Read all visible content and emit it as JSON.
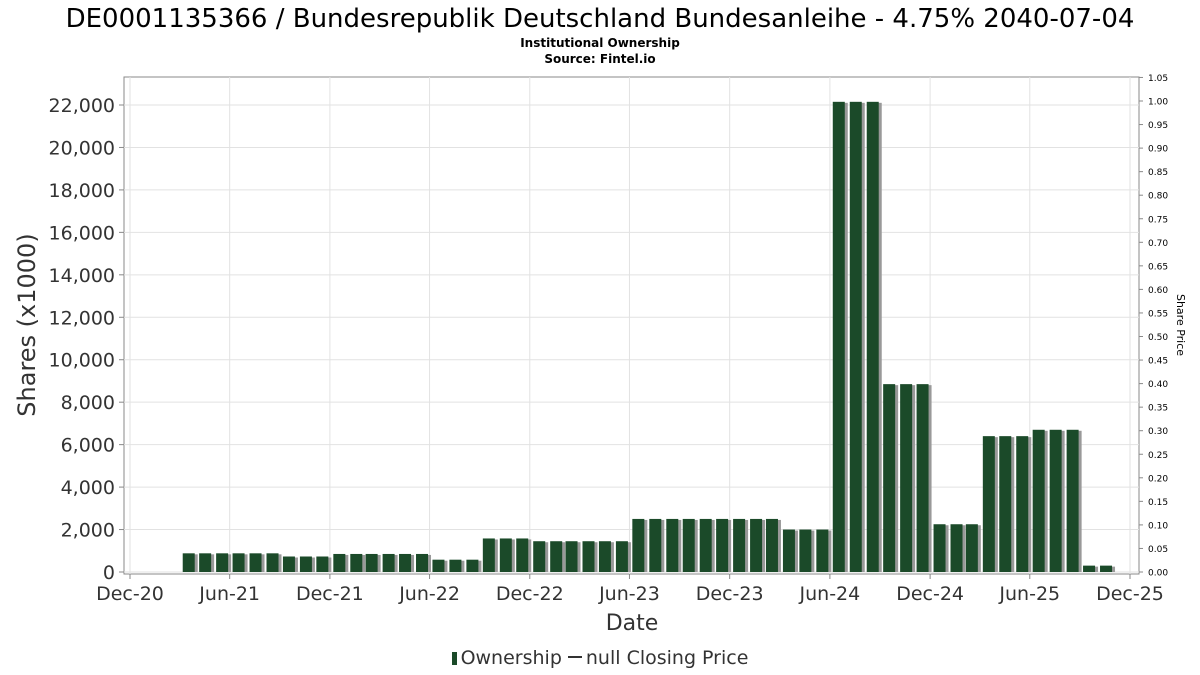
{
  "title": "DE0001135366 / Bundesrepublik Deutschland Bundesanleihe - 4.75% 2040-07-04",
  "subtitle": "Institutional Ownership",
  "source": "Source: Fintel.io",
  "colors": {
    "bar": "#1b4a29",
    "bar_shadow": "#999999",
    "grid": "#e2e2e2"
  },
  "legend": {
    "ownership": "Ownership",
    "closing_price": "null Closing Price"
  },
  "chart_data": {
    "type": "bar",
    "title": "DE0001135366 / Bundesrepublik Deutschland Bundesanleihe - 4.75% 2040-07-04",
    "xlabel": "Date",
    "ylabel": "Shares (x1000)",
    "y2label": "Share Price",
    "x_ticks": [
      "Dec-20",
      "Jun-21",
      "Dec-21",
      "Jun-22",
      "Dec-22",
      "Jun-23",
      "Dec-23",
      "Jun-24",
      "Dec-24",
      "Jun-25",
      "Dec-25"
    ],
    "x_range": [
      "2020-12-01",
      "2025-12-01"
    ],
    "ylim": [
      0,
      22700
    ],
    "y_ticks": [
      "0",
      "2,000",
      "4,000",
      "6,000",
      "8,000",
      "10,000",
      "12,000",
      "14,000",
      "16,000",
      "18,000",
      "20,000",
      "22,000"
    ],
    "y2lim": [
      0,
      1.05
    ],
    "y2_ticks": [
      "0.00",
      "0.05",
      "0.10",
      "0.15",
      "0.20",
      "0.25",
      "0.30",
      "0.35",
      "0.40",
      "0.45",
      "0.50",
      "0.55",
      "0.60",
      "0.65",
      "0.70",
      "0.75",
      "0.80",
      "0.85",
      "0.90",
      "0.95",
      "1.00",
      "1.05"
    ],
    "grid": true,
    "legend_position": "bottom",
    "series": [
      {
        "name": "Ownership",
        "dates": [
          "2021-03-31",
          "2021-04-30",
          "2021-05-31",
          "2021-06-30",
          "2021-07-31",
          "2021-08-31",
          "2021-09-30",
          "2021-10-31",
          "2021-11-30",
          "2021-12-31",
          "2022-01-31",
          "2022-02-28",
          "2022-03-31",
          "2022-04-30",
          "2022-05-31",
          "2022-06-30",
          "2022-07-31",
          "2022-08-31",
          "2022-09-30",
          "2022-10-31",
          "2022-11-30",
          "2022-12-31",
          "2023-01-31",
          "2023-02-28",
          "2023-03-31",
          "2023-04-30",
          "2023-05-31",
          "2023-06-30",
          "2023-07-31",
          "2023-08-31",
          "2023-09-30",
          "2023-10-31",
          "2023-11-30",
          "2023-12-31",
          "2024-01-31",
          "2024-02-29",
          "2024-03-31",
          "2024-04-30",
          "2024-05-31",
          "2024-06-30",
          "2024-07-31",
          "2024-08-31",
          "2024-09-30",
          "2024-10-31",
          "2024-11-30",
          "2024-12-31",
          "2025-01-31",
          "2025-02-28",
          "2025-03-31",
          "2025-04-30",
          "2025-05-31",
          "2025-06-30",
          "2025-07-31",
          "2025-08-31",
          "2025-09-30",
          "2025-10-31"
        ],
        "values": [
          880,
          880,
          880,
          880,
          880,
          880,
          730,
          730,
          730,
          850,
          850,
          850,
          850,
          850,
          850,
          580,
          580,
          580,
          1580,
          1580,
          1580,
          1450,
          1450,
          1450,
          1450,
          1450,
          1450,
          2500,
          2500,
          2500,
          2500,
          2500,
          2500,
          2500,
          2500,
          2500,
          2000,
          2000,
          2000,
          22150,
          22150,
          22150,
          8850,
          8850,
          8850,
          2250,
          2250,
          2250,
          6400,
          6400,
          6400,
          6700,
          6700,
          6700,
          300,
          300
        ]
      }
    ]
  }
}
